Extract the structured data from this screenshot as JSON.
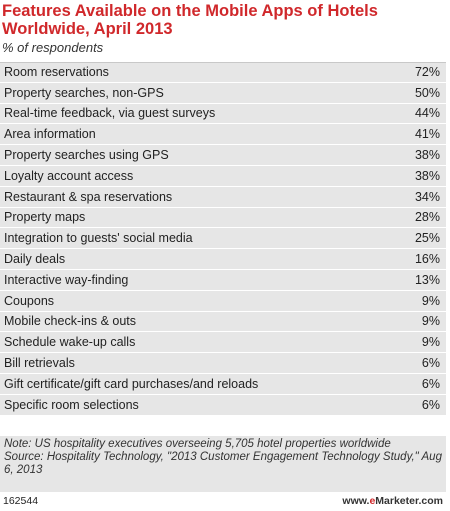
{
  "title": "Features Available on the Mobile Apps of Hotels Worldwide, April 2013",
  "subtitle": "% of respondents",
  "chart_data": {
    "type": "table",
    "title": "Features Available on the Mobile Apps of Hotels Worldwide, April 2013",
    "subtitle": "% of respondents",
    "categories": [
      "Room reservations",
      "Property searches, non-GPS",
      "Real-time feedback, via guest surveys",
      "Area information",
      "Property searches using GPS",
      "Loyalty account access",
      "Restaurant & spa reservations",
      "Property maps",
      "Integration to guests' social media",
      "Daily deals",
      "Interactive way-finding",
      "Coupons",
      "Mobile check-ins & outs",
      "Schedule wake-up calls",
      "Bill retrievals",
      "Gift certificate/gift card purchases/and reloads",
      "Specific room selections"
    ],
    "values": [
      72,
      50,
      44,
      41,
      38,
      38,
      34,
      28,
      25,
      16,
      13,
      9,
      9,
      9,
      6,
      6,
      6
    ],
    "value_suffix": "%"
  },
  "note": "Note: US hospitality executives overseeing 5,705 hotel properties worldwide",
  "source": "Source: Hospitality Technology, \"2013 Customer Engagement Technology Study,\" Aug 6, 2013",
  "footer": {
    "chart_id": "162544",
    "brand_prefix": "www.",
    "brand_e": "e",
    "brand_suffix": "Marketer.com"
  },
  "colors": {
    "title": "#d0282b",
    "row_background": "#e6e6e6"
  }
}
